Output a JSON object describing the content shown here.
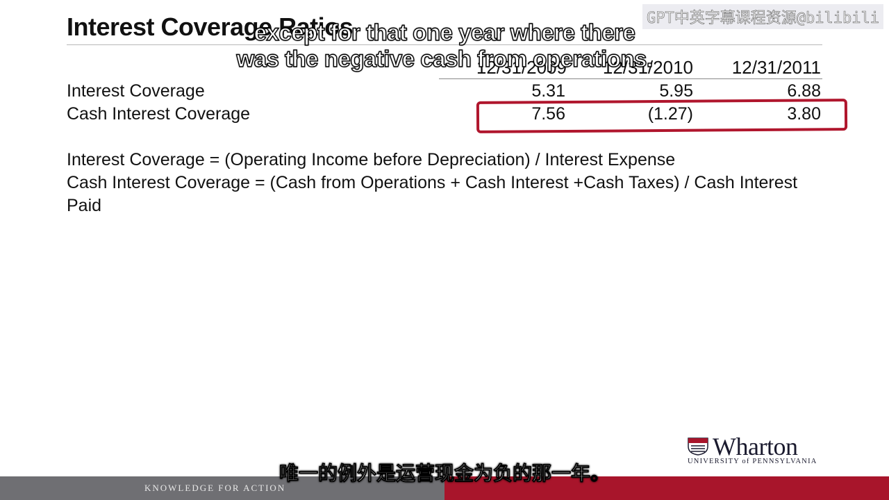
{
  "slide": {
    "title": "Interest Coverage Ratios",
    "columns": [
      "12/31/2009",
      "12/31/2010",
      "12/31/2011"
    ],
    "rows": [
      {
        "label": "Interest Coverage",
        "values": [
          "5.31",
          "5.95",
          "6.88"
        ]
      },
      {
        "label": "Cash Interest Coverage",
        "values": [
          "7.56",
          "(1.27)",
          "3.80"
        ]
      }
    ],
    "formulas": [
      "Interest Coverage = (Operating Income before Depreciation) / Interest Expense",
      "Cash Interest Coverage = (Cash from Operations + Cash Interest +Cash Taxes) / Cash Interest Paid"
    ],
    "highlight_color": "#b0162d"
  },
  "subtitles": {
    "en_line1": "except for that one year where there",
    "en_line2": "was the negative cash from operations.",
    "cn": "唯一的例外是运营现金为负的那一年。"
  },
  "watermark": "GPT中英字幕课程资源@bilibili",
  "branding": {
    "logo_word": "Wharton",
    "logo_sub": "UNIVERSITY of PENNSYLVANIA",
    "footer_text": "KNOWLEDGE FOR ACTION",
    "footer_gray": "#6f6f73",
    "footer_red": "#a8152b"
  }
}
